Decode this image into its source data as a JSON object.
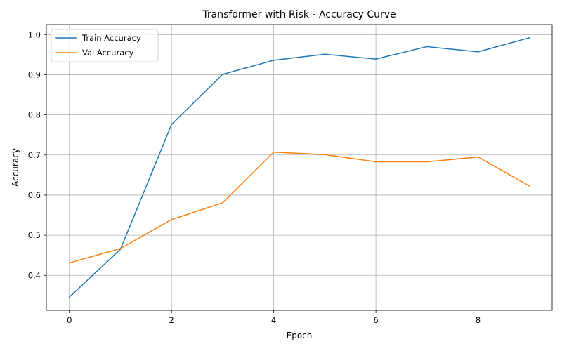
{
  "chart_data": {
    "type": "line",
    "title": "Transformer with Risk - Accuracy Curve",
    "xlabel": "Epoch",
    "ylabel": "Accuracy",
    "x": [
      0,
      1,
      2,
      3,
      4,
      5,
      6,
      7,
      8,
      9
    ],
    "xlim": [
      -0.45,
      9.45
    ],
    "ylim": [
      0.313,
      1.025
    ],
    "xticks": [
      0,
      2,
      4,
      6,
      8
    ],
    "yticks": [
      0.4,
      0.5,
      0.6,
      0.7,
      0.8,
      0.9,
      1.0
    ],
    "ytick_labels": [
      "0.4",
      "0.5",
      "0.6",
      "0.7",
      "0.8",
      "0.9",
      "1.0"
    ],
    "grid": true,
    "legend_position": "upper-left",
    "series": [
      {
        "name": "Train Accuracy",
        "color": "#1f77b4",
        "values": [
          0.346,
          0.465,
          0.776,
          0.901,
          0.936,
          0.951,
          0.939,
          0.97,
          0.957,
          0.992
        ]
      },
      {
        "name": "Val Accuracy",
        "color": "#ff7f0e",
        "values": [
          0.431,
          0.467,
          0.539,
          0.581,
          0.707,
          0.701,
          0.683,
          0.683,
          0.695,
          0.623
        ]
      }
    ]
  }
}
